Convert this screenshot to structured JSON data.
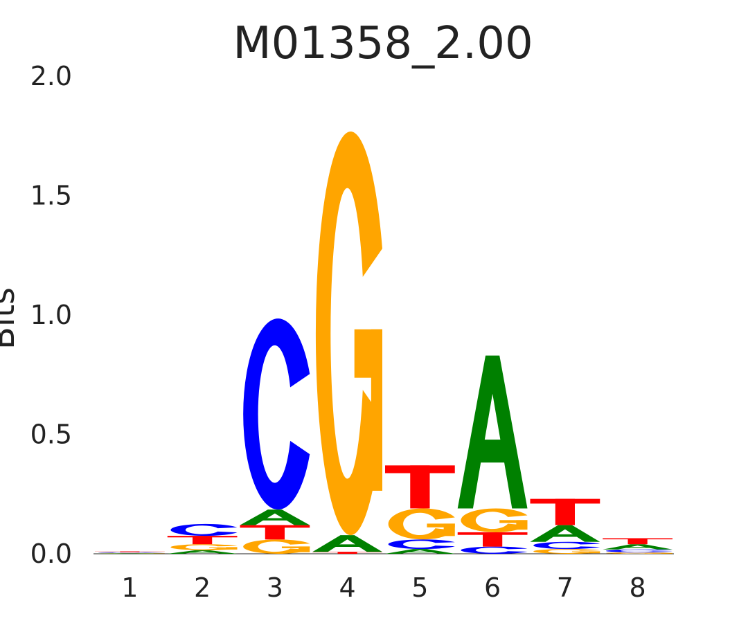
{
  "chart_data": {
    "type": "sequence-logo",
    "title": "M01358_2.00",
    "ylabel": "Bits",
    "xlabel": "",
    "ylim": [
      0,
      2
    ],
    "yticks": [
      "0.0",
      "0.5",
      "1.0",
      "1.5",
      "2.0"
    ],
    "positions": [
      "1",
      "2",
      "3",
      "4",
      "5",
      "6",
      "7",
      "8"
    ],
    "grid": false,
    "legend": "none",
    "colors": {
      "A": "#008000",
      "C": "#0000ff",
      "G": "#ffa500",
      "T": "#ff0000"
    },
    "stacks": [
      [
        {
          "letter": "A",
          "bits": 0.002
        },
        {
          "letter": "G",
          "bits": 0.002
        },
        {
          "letter": "C",
          "bits": 0.003
        },
        {
          "letter": "T",
          "bits": 0.003
        }
      ],
      [
        {
          "letter": "A",
          "bits": 0.015
        },
        {
          "letter": "G",
          "bits": 0.025
        },
        {
          "letter": "T",
          "bits": 0.035
        },
        {
          "letter": "C",
          "bits": 0.05
        }
      ],
      [
        {
          "letter": "G",
          "bits": 0.06
        },
        {
          "letter": "T",
          "bits": 0.06
        },
        {
          "letter": "A",
          "bits": 0.065
        },
        {
          "letter": "C",
          "bits": 0.8
        }
      ],
      [
        {
          "letter": "T",
          "bits": 0.008
        },
        {
          "letter": "A",
          "bits": 0.07
        },
        {
          "letter": "G",
          "bits": 1.69
        }
      ],
      [
        {
          "letter": "A",
          "bits": 0.02
        },
        {
          "letter": "C",
          "bits": 0.04
        },
        {
          "letter": "G",
          "bits": 0.13
        },
        {
          "letter": "T",
          "bits": 0.18
        }
      ],
      [
        {
          "letter": "C",
          "bits": 0.03
        },
        {
          "letter": "T",
          "bits": 0.06
        },
        {
          "letter": "G",
          "bits": 0.1
        },
        {
          "letter": "A",
          "bits": 0.64
        }
      ],
      [
        {
          "letter": "G",
          "bits": 0.02
        },
        {
          "letter": "C",
          "bits": 0.03
        },
        {
          "letter": "A",
          "bits": 0.07
        },
        {
          "letter": "T",
          "bits": 0.11
        }
      ],
      [
        {
          "letter": "G",
          "bits": 0.006
        },
        {
          "letter": "C",
          "bits": 0.012
        },
        {
          "letter": "A",
          "bits": 0.022
        },
        {
          "letter": "T",
          "bits": 0.025
        }
      ]
    ]
  }
}
